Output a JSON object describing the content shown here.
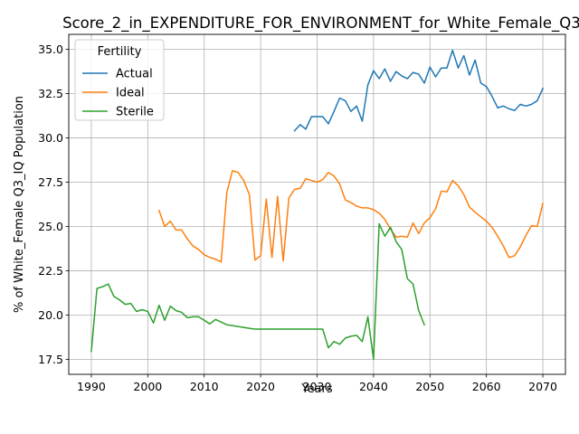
{
  "chart_data": {
    "type": "line",
    "title": "Score_2_in_EXPENDITURE_FOR_ENVIRONMENT_for_White_Female_Q3_IQ",
    "xlabel": "Years",
    "ylabel": "% of White_Female Q3_IQ Population",
    "xlim": [
      1986,
      2074
    ],
    "ylim": [
      16.65,
      35.85
    ],
    "xticks": [
      1990,
      2000,
      2010,
      2020,
      2030,
      2040,
      2050,
      2060,
      2070
    ],
    "yticks": [
      17.5,
      20.0,
      22.5,
      25.0,
      27.5,
      30.0,
      32.5,
      35.0
    ],
    "grid": true,
    "legend": {
      "title": "Fertility",
      "position": "top-left"
    },
    "series": [
      {
        "name": "Actual",
        "color": "#1f77b4",
        "points": [
          [
            2026,
            30.4
          ],
          [
            2027,
            30.75
          ],
          [
            2028,
            30.5
          ],
          [
            2029,
            31.2
          ],
          [
            2030,
            31.2
          ],
          [
            2031,
            31.2
          ],
          [
            2032,
            30.8
          ],
          [
            2033,
            31.5
          ],
          [
            2034,
            32.25
          ],
          [
            2035,
            32.1
          ],
          [
            2036,
            31.5
          ],
          [
            2037,
            31.8
          ],
          [
            2038,
            30.95
          ],
          [
            2039,
            33.0
          ],
          [
            2040,
            33.8
          ],
          [
            2041,
            33.35
          ],
          [
            2042,
            33.9
          ],
          [
            2043,
            33.2
          ],
          [
            2044,
            33.75
          ],
          [
            2045,
            33.5
          ],
          [
            2046,
            33.35
          ],
          [
            2047,
            33.7
          ],
          [
            2048,
            33.6
          ],
          [
            2049,
            33.1
          ],
          [
            2050,
            34.0
          ],
          [
            2051,
            33.45
          ],
          [
            2052,
            33.95
          ],
          [
            2053,
            33.95
          ],
          [
            2054,
            34.95
          ],
          [
            2055,
            33.95
          ],
          [
            2056,
            34.65
          ],
          [
            2057,
            33.55
          ],
          [
            2058,
            34.4
          ],
          [
            2059,
            33.1
          ],
          [
            2060,
            32.9
          ],
          [
            2061,
            32.35
          ],
          [
            2062,
            31.7
          ],
          [
            2063,
            31.8
          ],
          [
            2064,
            31.65
          ],
          [
            2065,
            31.55
          ],
          [
            2066,
            31.9
          ],
          [
            2067,
            31.8
          ],
          [
            2068,
            31.9
          ],
          [
            2069,
            32.1
          ],
          [
            2070,
            32.8
          ]
        ]
      },
      {
        "name": "Ideal",
        "color": "#ff7f0e",
        "points": [
          [
            2002,
            25.9
          ],
          [
            2003,
            25.0
          ],
          [
            2004,
            25.3
          ],
          [
            2005,
            24.8
          ],
          [
            2006,
            24.8
          ],
          [
            2007,
            24.3
          ],
          [
            2008,
            23.9
          ],
          [
            2009,
            23.7
          ],
          [
            2010,
            23.4
          ],
          [
            2011,
            23.25
          ],
          [
            2012,
            23.15
          ],
          [
            2013,
            23.0
          ],
          [
            2014,
            26.9
          ],
          [
            2015,
            28.15
          ],
          [
            2016,
            28.05
          ],
          [
            2017,
            27.6
          ],
          [
            2018,
            26.8
          ],
          [
            2019,
            23.1
          ],
          [
            2020,
            23.35
          ],
          [
            2021,
            26.55
          ],
          [
            2022,
            23.25
          ],
          [
            2023,
            26.7
          ],
          [
            2024,
            23.05
          ],
          [
            2025,
            26.6
          ],
          [
            2026,
            27.1
          ],
          [
            2027,
            27.15
          ],
          [
            2028,
            27.7
          ],
          [
            2029,
            27.6
          ],
          [
            2030,
            27.5
          ],
          [
            2031,
            27.65
          ],
          [
            2032,
            28.05
          ],
          [
            2033,
            27.85
          ],
          [
            2034,
            27.4
          ],
          [
            2035,
            26.5
          ],
          [
            2036,
            26.35
          ],
          [
            2037,
            26.15
          ],
          [
            2038,
            26.05
          ],
          [
            2039,
            26.05
          ],
          [
            2040,
            25.95
          ],
          [
            2041,
            25.75
          ],
          [
            2042,
            25.4
          ],
          [
            2043,
            24.85
          ],
          [
            2044,
            24.4
          ],
          [
            2045,
            24.45
          ],
          [
            2046,
            24.4
          ],
          [
            2047,
            25.2
          ],
          [
            2048,
            24.6
          ],
          [
            2049,
            25.2
          ],
          [
            2050,
            25.5
          ],
          [
            2051,
            26.0
          ],
          [
            2052,
            27.0
          ],
          [
            2053,
            26.95
          ],
          [
            2054,
            27.6
          ],
          [
            2055,
            27.3
          ],
          [
            2056,
            26.8
          ],
          [
            2057,
            26.1
          ],
          [
            2058,
            25.8
          ],
          [
            2059,
            25.55
          ],
          [
            2060,
            25.3
          ],
          [
            2061,
            24.95
          ],
          [
            2062,
            24.45
          ],
          [
            2063,
            23.9
          ],
          [
            2064,
            23.25
          ],
          [
            2065,
            23.35
          ],
          [
            2066,
            23.85
          ],
          [
            2067,
            24.5
          ],
          [
            2068,
            25.05
          ],
          [
            2069,
            25.0
          ],
          [
            2070,
            26.3
          ]
        ]
      },
      {
        "name": "Sterile",
        "color": "#2ca02c",
        "points": [
          [
            1990,
            17.95
          ],
          [
            1991,
            21.5
          ],
          [
            1992,
            21.6
          ],
          [
            1993,
            21.75
          ],
          [
            1994,
            21.05
          ],
          [
            1995,
            20.85
          ],
          [
            1996,
            20.6
          ],
          [
            1997,
            20.65
          ],
          [
            1998,
            20.2
          ],
          [
            1999,
            20.3
          ],
          [
            2000,
            20.2
          ],
          [
            2001,
            19.55
          ],
          [
            2002,
            20.55
          ],
          [
            2003,
            19.7
          ],
          [
            2004,
            20.5
          ],
          [
            2005,
            20.25
          ],
          [
            2006,
            20.15
          ],
          [
            2007,
            19.85
          ],
          [
            2008,
            19.9
          ],
          [
            2009,
            19.9
          ],
          [
            2010,
            19.7
          ],
          [
            2011,
            19.5
          ],
          [
            2012,
            19.75
          ],
          [
            2013,
            19.6
          ],
          [
            2014,
            19.45
          ],
          [
            2015,
            19.4
          ],
          [
            2016,
            19.35
          ],
          [
            2017,
            19.3
          ],
          [
            2018,
            19.25
          ],
          [
            2019,
            19.2
          ],
          [
            2020,
            19.2
          ],
          [
            2021,
            19.2
          ],
          [
            2022,
            19.2
          ],
          [
            2023,
            19.2
          ],
          [
            2024,
            19.2
          ],
          [
            2025,
            19.2
          ],
          [
            2026,
            19.2
          ],
          [
            2027,
            19.2
          ],
          [
            2028,
            19.2
          ],
          [
            2029,
            19.2
          ],
          [
            2030,
            19.2
          ],
          [
            2031,
            19.2
          ],
          [
            2032,
            18.15
          ],
          [
            2033,
            18.5
          ],
          [
            2034,
            18.35
          ],
          [
            2035,
            18.7
          ],
          [
            2036,
            18.8
          ],
          [
            2037,
            18.85
          ],
          [
            2038,
            18.5
          ],
          [
            2039,
            19.9
          ],
          [
            2040,
            17.5
          ],
          [
            2041,
            25.15
          ],
          [
            2042,
            24.45
          ],
          [
            2043,
            24.95
          ],
          [
            2044,
            24.15
          ],
          [
            2045,
            23.7
          ],
          [
            2046,
            22.05
          ],
          [
            2047,
            21.75
          ],
          [
            2048,
            20.25
          ],
          [
            2049,
            19.45
          ]
        ]
      }
    ]
  }
}
